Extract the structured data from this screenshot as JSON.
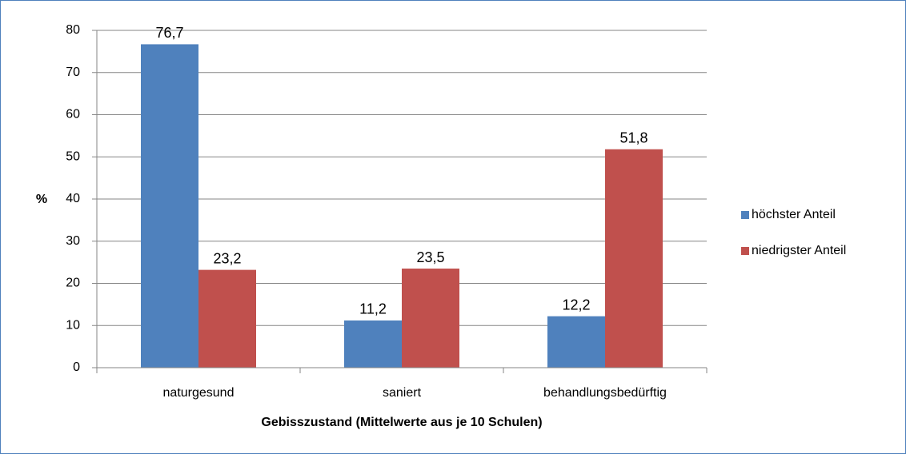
{
  "chart_data": {
    "type": "bar",
    "x_label": "Gebisszustand (Mittelwerte aus je 10 Schulen)",
    "y_label": "%",
    "categories": [
      "naturgesund",
      "saniert",
      "behandlungsbedürftig"
    ],
    "series": [
      {
        "name": "höchster Anteil",
        "color": "#4f81bd",
        "values": [
          76.7,
          11.2,
          12.2
        ],
        "value_labels": [
          "76,7",
          "11,2",
          "12,2"
        ]
      },
      {
        "name": "niedrigster Anteil",
        "color": "#c0504d",
        "values": [
          23.2,
          23.5,
          51.8
        ],
        "value_labels": [
          "23,2",
          "23,5",
          "51,8"
        ]
      }
    ],
    "ylim": [
      0,
      80
    ],
    "yticks": [
      0,
      10,
      20,
      30,
      40,
      50,
      60,
      70,
      80
    ],
    "grid": true,
    "legend": "right"
  }
}
